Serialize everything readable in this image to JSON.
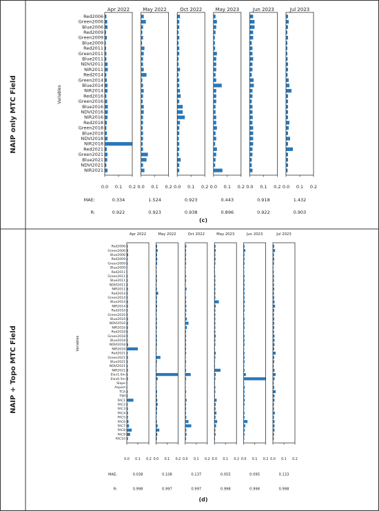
{
  "colors": {
    "bar": "#2a78b8",
    "frame": "#333333",
    "text": "#222222"
  },
  "panels": [
    {
      "side_label": "NAIP only MTC Field",
      "caption": "(c)",
      "ylabel": "Variables",
      "metric_labels": [
        "MAE:",
        "R:"
      ]
    },
    {
      "side_label": "NAIP + Topo MTC Field",
      "caption": "(d)",
      "ylabel": "Variables",
      "metric_labels": [
        "MAE:",
        "R:"
      ]
    }
  ],
  "chart_data": [
    {
      "type": "bar",
      "orientation": "horizontal",
      "xlim": [
        0,
        0.2
      ],
      "xticks": [
        "0.0",
        "0.1",
        "0.2"
      ],
      "categories": [
        "Red2006",
        "Green2006",
        "Blue2006",
        "Red2009",
        "Green2009",
        "Blue2009",
        "Red2011",
        "Green2011",
        "Blue2011",
        "NDVI2011",
        "NIR2011",
        "Red2014",
        "Green2014",
        "Blue2014",
        "NIR2014",
        "Red2016",
        "Green2016",
        "Blue2016",
        "NDVI2016",
        "NIR2016",
        "Red2018",
        "Green2018",
        "Blue2018",
        "NDVI2018",
        "NIR2018",
        "Red2021",
        "Green2021",
        "Blue2021",
        "NDVI2021",
        "NIR2021"
      ],
      "series": [
        {
          "name": "Apr 2022",
          "values": [
            0.012,
            0.018,
            0.02,
            0.01,
            0.015,
            0.008,
            0.01,
            0.012,
            0.012,
            0.02,
            0.022,
            0.012,
            0.015,
            0.02,
            0.02,
            0.012,
            0.018,
            0.022,
            0.022,
            0.02,
            0.015,
            0.012,
            0.015,
            0.02,
            0.2,
            0.015,
            0.02,
            0.018,
            0.012,
            0.02
          ],
          "mae": "0.334",
          "r": "0.922"
        },
        {
          "name": "May 2022",
          "values": [
            0.02,
            0.035,
            0.015,
            0.01,
            0.015,
            0.008,
            0.025,
            0.02,
            0.015,
            0.015,
            0.02,
            0.04,
            0.01,
            0.015,
            0.02,
            0.015,
            0.012,
            0.02,
            0.02,
            0.015,
            0.015,
            0.012,
            0.015,
            0.015,
            0.012,
            0.015,
            0.05,
            0.04,
            0.015,
            0.025
          ],
          "mae": "1.524",
          "r": "0.923"
        },
        {
          "name": "Oct 2022",
          "values": [
            0.02,
            0.015,
            0.015,
            0.01,
            0.015,
            0.01,
            0.015,
            0.015,
            0.01,
            0.01,
            0.02,
            0.01,
            0.015,
            0.015,
            0.02,
            0.025,
            0.015,
            0.04,
            0.04,
            0.055,
            0.02,
            0.015,
            0.015,
            0.012,
            0.015,
            0.015,
            0.012,
            0.025,
            0.015,
            0.015
          ],
          "mae": "0.923",
          "r": "0.938"
        },
        {
          "name": "May 2023",
          "values": [
            0.015,
            0.025,
            0.02,
            0.015,
            0.01,
            0.01,
            0.012,
            0.025,
            0.02,
            0.02,
            0.02,
            0.015,
            0.02,
            0.06,
            0.02,
            0.02,
            0.02,
            0.015,
            0.015,
            0.02,
            0.02,
            0.025,
            0.015,
            0.02,
            0.012,
            0.025,
            0.02,
            0.015,
            0.012,
            0.065
          ],
          "mae": "0.443",
          "r": "0.896"
        },
        {
          "name": "Jun 2023",
          "values": [
            0.025,
            0.035,
            0.035,
            0.025,
            0.025,
            0.015,
            0.02,
            0.02,
            0.025,
            0.02,
            0.02,
            0.015,
            0.028,
            0.03,
            0.02,
            0.02,
            0.015,
            0.02,
            0.02,
            0.022,
            0.02,
            0.025,
            0.025,
            0.025,
            0.025,
            0.02,
            0.02,
            0.015,
            0.015,
            0.02
          ],
          "mae": "0.918",
          "r": "0.922"
        },
        {
          "name": "Jul 2023",
          "values": [
            0.015,
            0.02,
            0.015,
            0.01,
            0.015,
            0.01,
            0.01,
            0.01,
            0.012,
            0.015,
            0.015,
            0.012,
            0.02,
            0.025,
            0.04,
            0.015,
            0.015,
            0.015,
            0.015,
            0.015,
            0.025,
            0.02,
            0.015,
            0.03,
            0.015,
            0.05,
            0.015,
            0.015,
            0.015,
            0.012
          ],
          "mae": "1.432",
          "r": "0.903"
        }
      ]
    },
    {
      "type": "bar",
      "orientation": "horizontal",
      "xlim": [
        0,
        0.2
      ],
      "xticks": [
        "0.0",
        "0.1",
        "0.2"
      ],
      "categories": [
        "Red2006",
        "Green2006",
        "Blue2006",
        "Red2009",
        "Green2009",
        "Blue2009",
        "Red2011",
        "Green2011",
        "Blue2011",
        "NDVI2011",
        "NIR2011",
        "Red2014",
        "Green2014",
        "Blue2014",
        "NIR2014",
        "Red2016",
        "Green2016",
        "Blue2016",
        "NDVI2016",
        "NIR2016",
        "Red2018",
        "Green2018",
        "Blue2018",
        "NDVI2018",
        "NIR2018",
        "Red2021",
        "Green2021",
        "Blue2021",
        "NDVI2021",
        "NIR2021",
        "Elev1.0m",
        "Elev0.5m",
        "Slope",
        "Aspect",
        "TCA",
        "TWI",
        "FAC1",
        "FAC2",
        "FAC3",
        "FAC4",
        "FAC5",
        "FAC6",
        "FAC7",
        "FAC8",
        "FAC9",
        "FAC10"
      ],
      "series": [
        {
          "name": "Apr 2022",
          "values": [
            0.008,
            0.01,
            0.012,
            0.008,
            0.008,
            0.005,
            0.005,
            0.008,
            0.008,
            0.008,
            0.01,
            0.008,
            0.008,
            0.01,
            0.01,
            0.008,
            0.008,
            0.01,
            0.01,
            0.01,
            0.008,
            0.008,
            0.008,
            0.012,
            0.1,
            0.008,
            0.01,
            0.008,
            0.008,
            0.01,
            0.008,
            0.01,
            0.005,
            0.005,
            0.008,
            0.008,
            0.06,
            0.008,
            0.01,
            0.01,
            0.01,
            0.015,
            0.02,
            0.045,
            0.03,
            0.01
          ],
          "mae": "0.038",
          "r": "0.998"
        },
        {
          "name": "May 2022",
          "values": [
            0.01,
            0.015,
            0.01,
            0.012,
            0.01,
            0.005,
            0.005,
            0.008,
            0.008,
            0.005,
            0.008,
            0.02,
            0.008,
            0.008,
            0.01,
            0.008,
            0.005,
            0.008,
            0.008,
            0.008,
            0.005,
            0.008,
            0.008,
            0.008,
            0.005,
            0.005,
            0.04,
            0.008,
            0.005,
            0.005,
            0.2,
            0.015,
            0.005,
            0.005,
            0.01,
            0.008,
            0.012,
            0.015,
            0.01,
            0.008,
            0.005,
            0.008,
            0.015,
            0.03,
            0.012,
            0.008
          ],
          "mae": "0.108",
          "r": "0.997"
        },
        {
          "name": "Oct 2022",
          "values": [
            0.01,
            0.008,
            0.008,
            0.008,
            0.008,
            0.005,
            0.005,
            0.008,
            0.008,
            0.005,
            0.012,
            0.005,
            0.008,
            0.008,
            0.01,
            0.01,
            0.008,
            0.015,
            0.03,
            0.015,
            0.008,
            0.008,
            0.008,
            0.008,
            0.008,
            0.008,
            0.005,
            0.008,
            0.005,
            0.008,
            0.05,
            0.008,
            0.005,
            0.005,
            0.008,
            0.005,
            0.012,
            0.008,
            0.008,
            0.008,
            0.01,
            0.03,
            0.055,
            0.01,
            0.012,
            0.008
          ],
          "mae": "0.137",
          "r": "0.997"
        },
        {
          "name": "May 2023",
          "values": [
            0.01,
            0.012,
            0.008,
            0.01,
            0.008,
            0.005,
            0.005,
            0.008,
            0.008,
            0.008,
            0.008,
            0.008,
            0.008,
            0.04,
            0.012,
            0.008,
            0.008,
            0.008,
            0.008,
            0.008,
            0.008,
            0.012,
            0.008,
            0.008,
            0.005,
            0.012,
            0.008,
            0.005,
            0.005,
            0.055,
            0.012,
            0.008,
            0.005,
            0.008,
            0.008,
            0.005,
            0.02,
            0.012,
            0.01,
            0.018,
            0.01,
            0.025,
            0.015,
            0.008,
            0.01,
            0.005
          ],
          "mae": "0.055",
          "r": "0.998"
        },
        {
          "name": "Jun 2023",
          "values": [
            0.008,
            0.015,
            0.008,
            0.008,
            0.008,
            0.005,
            0.005,
            0.008,
            0.008,
            0.008,
            0.008,
            0.008,
            0.008,
            0.01,
            0.008,
            0.008,
            0.005,
            0.008,
            0.008,
            0.008,
            0.005,
            0.008,
            0.008,
            0.008,
            0.005,
            0.008,
            0.008,
            0.008,
            0.005,
            0.008,
            0.02,
            0.2,
            0.005,
            0.01,
            0.008,
            0.008,
            0.01,
            0.008,
            0.005,
            0.008,
            0.008,
            0.035,
            0.015,
            0.01,
            0.008,
            0.005
          ],
          "mae": "0.095",
          "r": "0.998"
        },
        {
          "name": "Jul 2023",
          "values": [
            0.012,
            0.02,
            0.01,
            0.012,
            0.01,
            0.005,
            0.008,
            0.01,
            0.01,
            0.01,
            0.012,
            0.01,
            0.012,
            0.015,
            0.02,
            0.012,
            0.01,
            0.012,
            0.012,
            0.012,
            0.01,
            0.015,
            0.015,
            0.015,
            0.012,
            0.025,
            0.012,
            0.012,
            0.008,
            0.015,
            0.025,
            0.015,
            0.008,
            0.012,
            0.025,
            0.015,
            0.015,
            0.01,
            0.01,
            0.018,
            0.01,
            0.015,
            0.015,
            0.015,
            0.01,
            0.008
          ],
          "mae": "0.133",
          "r": "0.998"
        }
      ]
    }
  ]
}
